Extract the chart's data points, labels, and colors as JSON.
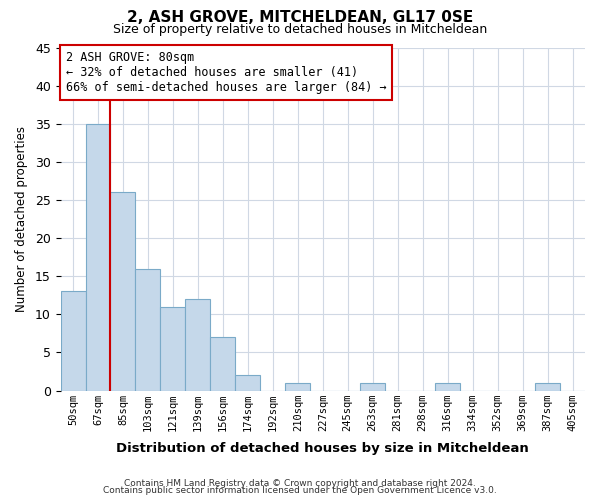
{
  "title": "2, ASH GROVE, MITCHELDEAN, GL17 0SE",
  "subtitle": "Size of property relative to detached houses in Mitcheldean",
  "xlabel": "Distribution of detached houses by size in Mitcheldean",
  "ylabel": "Number of detached properties",
  "bin_labels": [
    "50sqm",
    "67sqm",
    "85sqm",
    "103sqm",
    "121sqm",
    "139sqm",
    "156sqm",
    "174sqm",
    "192sqm",
    "210sqm",
    "227sqm",
    "245sqm",
    "263sqm",
    "281sqm",
    "298sqm",
    "316sqm",
    "334sqm",
    "352sqm",
    "369sqm",
    "387sqm",
    "405sqm"
  ],
  "bar_values": [
    13,
    35,
    26,
    16,
    11,
    12,
    7,
    2,
    0,
    1,
    0,
    0,
    1,
    0,
    0,
    1,
    0,
    0,
    0,
    1,
    0
  ],
  "bar_color": "#c5d8ea",
  "bar_edge_color": "#7aaac8",
  "grid_color": "#d0d8e4",
  "background_color": "#ffffff",
  "property_line_color": "#cc0000",
  "annotation_text_line1": "2 ASH GROVE: 80sqm",
  "annotation_text_line2": "← 32% of detached houses are smaller (41)",
  "annotation_text_line3": "66% of semi-detached houses are larger (84) →",
  "annotation_box_color": "#ffffff",
  "annotation_box_edge": "#cc0000",
  "ylim": [
    0,
    45
  ],
  "yticks": [
    0,
    5,
    10,
    15,
    20,
    25,
    30,
    35,
    40,
    45
  ],
  "footer1": "Contains HM Land Registry data © Crown copyright and database right 2024.",
  "footer2": "Contains public sector information licensed under the Open Government Licence v3.0."
}
